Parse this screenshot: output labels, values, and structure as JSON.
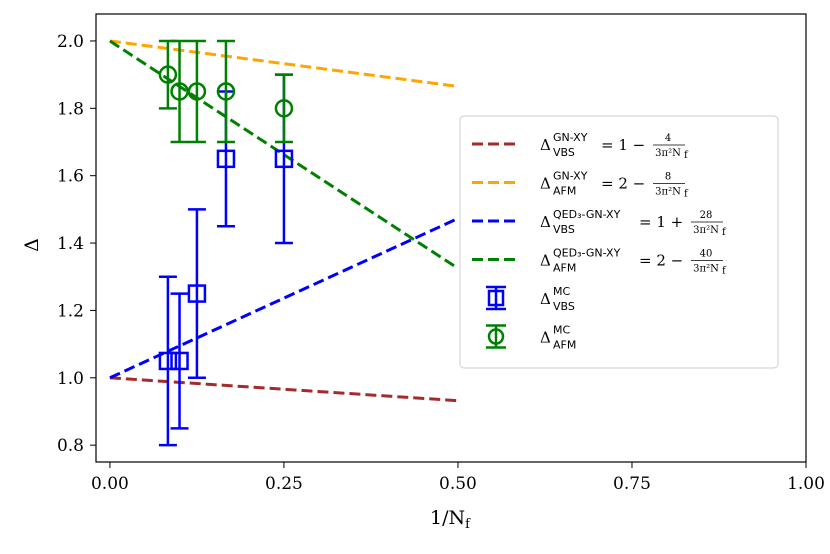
{
  "chart_data": {
    "type": "line",
    "xlabel": "1/N",
    "xlabel_sub": "f",
    "ylabel": "Δ",
    "xlim": [
      -0.02,
      1.0
    ],
    "ylim": [
      0.75,
      2.08
    ],
    "xticks": [
      0.0,
      0.25,
      0.5,
      0.75,
      1.0
    ],
    "xtick_labels": [
      "0.00",
      "0.25",
      "0.50",
      "0.75",
      "1.00"
    ],
    "yticks": [
      0.8,
      1.0,
      1.2,
      1.4,
      1.6,
      1.8,
      2.0
    ],
    "ytick_labels": [
      "0.8",
      "1.0",
      "1.2",
      "1.4",
      "1.6",
      "1.8",
      "2.0"
    ],
    "lines": [
      {
        "name": "Δ_VBS^GN-XY = 1 − 4/(3π²N_f)",
        "color": "#a52a2a",
        "dash": true,
        "x": [
          0.0,
          0.5
        ],
        "y": [
          1.0,
          0.932
        ]
      },
      {
        "name": "Δ_AFM^GN-XY = 2 − 8/(3π²N_f)",
        "color": "#ffa500",
        "dash": true,
        "x": [
          0.0,
          0.5
        ],
        "y": [
          2.0,
          1.865
        ]
      },
      {
        "name": "Δ_VBS^QED3-GN-XY = 1 + 28/(3π²N_f)",
        "color": "#0000ff",
        "dash": true,
        "x": [
          0.0,
          0.5
        ],
        "y": [
          1.0,
          1.473
        ]
      },
      {
        "name": "Δ_AFM^QED3-GN-XY = 2 − 40/(3π²N_f)",
        "color": "#008000",
        "dash": true,
        "x": [
          0.0,
          0.5
        ],
        "y": [
          2.0,
          1.325
        ]
      }
    ],
    "scatter": [
      {
        "name": "Δ_VBS^MC",
        "color": "#0000ff",
        "marker": "square",
        "points": [
          {
            "x": 0.0833,
            "y": 1.05,
            "err": 0.25
          },
          {
            "x": 0.1,
            "y": 1.05,
            "err": 0.2
          },
          {
            "x": 0.125,
            "y": 1.25,
            "err": 0.25
          },
          {
            "x": 0.1667,
            "y": 1.65,
            "err": 0.2
          },
          {
            "x": 0.25,
            "y": 1.65,
            "err": 0.25
          }
        ]
      },
      {
        "name": "Δ_AFM^MC",
        "color": "#008000",
        "marker": "circle",
        "points": [
          {
            "x": 0.0833,
            "y": 1.9,
            "err": 0.1
          },
          {
            "x": 0.1,
            "y": 1.85,
            "err": 0.15
          },
          {
            "x": 0.125,
            "y": 1.85,
            "err": 0.15
          },
          {
            "x": 0.1667,
            "y": 1.85,
            "err": 0.15
          },
          {
            "x": 0.25,
            "y": 1.8,
            "err": 0.1
          }
        ]
      }
    ],
    "legend": {
      "placement": "right",
      "entries": [
        {
          "kind": "line",
          "color": "#a52a2a",
          "sym": "Δ",
          "sup": "GN-XY",
          "sub": "VBS",
          "rhs": "= 1 −",
          "num": "4",
          "den": "3π²N"
        },
        {
          "kind": "line",
          "color": "#ffa500",
          "sym": "Δ",
          "sup": "GN-XY",
          "sub": "AFM",
          "rhs": "= 2 −",
          "num": "8",
          "den": "3π²N"
        },
        {
          "kind": "line",
          "color": "#0000ff",
          "sym": "Δ",
          "sup": "QED₃-GN-XY",
          "sub": "VBS",
          "rhs": "= 1 +",
          "num": "28",
          "den": "3π²N"
        },
        {
          "kind": "line",
          "color": "#008000",
          "sym": "Δ",
          "sup": "QED₃-GN-XY",
          "sub": "AFM",
          "rhs": "= 2 −",
          "num": "40",
          "den": "3π²N"
        },
        {
          "kind": "square",
          "color": "#0000ff",
          "sym": "Δ",
          "sup": "MC",
          "sub": "VBS",
          "rhs": "",
          "num": "",
          "den": ""
        },
        {
          "kind": "circle",
          "color": "#008000",
          "sym": "Δ",
          "sup": "MC",
          "sub": "AFM",
          "rhs": "",
          "num": "",
          "den": ""
        }
      ]
    },
    "grid": false
  }
}
